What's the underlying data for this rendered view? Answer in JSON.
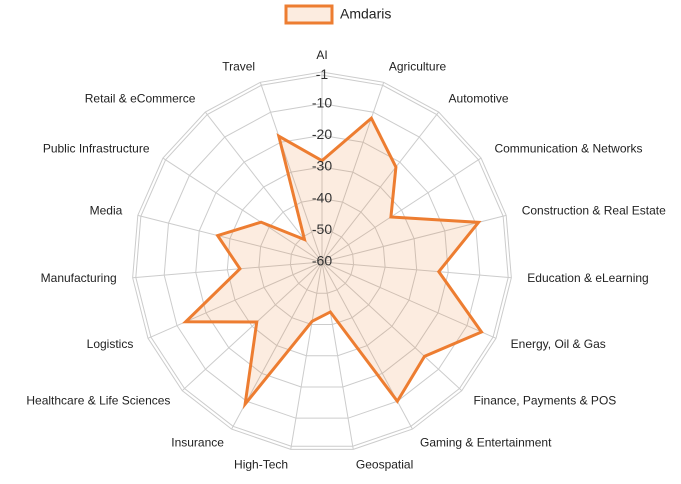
{
  "chart_data": {
    "type": "radar",
    "categories": [
      "AI",
      "Agriculture",
      "Automotive",
      "Communication & Networks",
      "Construction & Real Estate",
      "Education & eLearning",
      "Energy, Oil & Gas",
      "Finance, Payments & POS",
      "Gaming & Entertainment",
      "Geospatial",
      "High-Tech",
      "Insurance",
      "Healthcare & Life Sciences",
      "Logistics",
      "Manufacturing",
      "Media",
      "Public Infrastructure",
      "Retail & eCommerce",
      "Travel"
    ],
    "series": [
      {
        "name": "Amdaris",
        "color": "#ed7d31",
        "values": [
          -28,
          -12,
          -22,
          -34,
          -9,
          -23,
          -5,
          -16,
          -10,
          -44,
          -41,
          -9,
          -32,
          -13,
          -34,
          -26,
          -37,
          -51,
          -18
        ]
      }
    ],
    "ylim": [
      -60,
      0
    ],
    "yticks": [
      -60,
      -50,
      -40,
      -30,
      -20,
      -10,
      -1
    ],
    "grid": true,
    "legend": "top"
  }
}
